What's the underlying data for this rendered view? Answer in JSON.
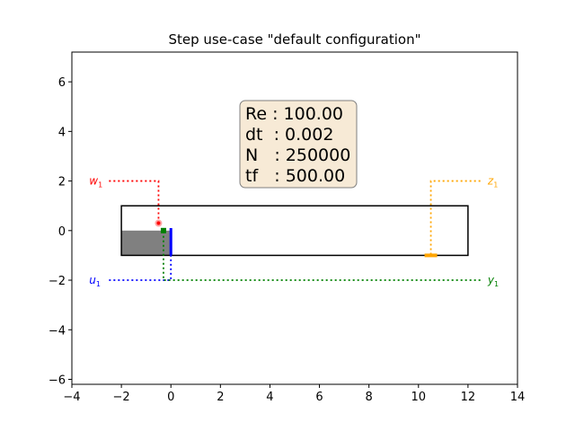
{
  "title": "Step use-case \"default configuration\"",
  "info_box": {
    "lines": [
      "Re : 100.00",
      "dt  : 0.002",
      "N   : 250000",
      "tf   : 500.00"
    ],
    "background": "#f7ead6",
    "border": "#7f7f7f"
  },
  "axes": {
    "xlim": [
      -4,
      14
    ],
    "ylim": [
      -6.2,
      7.2
    ],
    "xticks": [
      -4,
      -2,
      0,
      2,
      4,
      6,
      8,
      10,
      12,
      14
    ],
    "yticks": [
      -6,
      -4,
      -2,
      0,
      2,
      4,
      6
    ],
    "xtick_labels": [
      "−4",
      "−2",
      "0",
      "2",
      "4",
      "6",
      "8",
      "10",
      "12",
      "14"
    ],
    "ytick_labels": [
      "−6",
      "−4",
      "−2",
      "0",
      "2",
      "4",
      "6"
    ]
  },
  "domain": {
    "x": [
      -2,
      12
    ],
    "y": [
      -1,
      1
    ],
    "color": "#000000"
  },
  "step": {
    "x": [
      -2,
      0
    ],
    "y": [
      -1,
      0
    ],
    "color": "#808080"
  },
  "signals": [
    {
      "id": "w",
      "name": "w",
      "sub": "1",
      "color": "#ff0000",
      "label_at": [
        -3.3,
        2
      ],
      "path": [
        [
          -2.5,
          2
        ],
        [
          -0.5,
          2
        ],
        [
          -0.5,
          0.3
        ]
      ],
      "marker": "circle",
      "marker_at": [
        -0.5,
        0.3
      ]
    },
    {
      "id": "u",
      "name": "u",
      "sub": "1",
      "color": "#0000ff",
      "label_at": [
        -3.3,
        -2
      ],
      "path": [
        [
          -2.5,
          -2
        ],
        [
          0,
          -2
        ],
        [
          0,
          0.1
        ]
      ],
      "marker": "bar",
      "marker_at": [
        0,
        -0.5
      ]
    },
    {
      "id": "y",
      "name": "y",
      "sub": "1",
      "color": "#008000",
      "label_at": [
        12.8,
        -2
      ],
      "path": [
        [
          12.5,
          -2
        ],
        [
          -0.3,
          -2
        ],
        [
          -0.3,
          0
        ]
      ],
      "marker": "square",
      "marker_at": [
        -0.3,
        0
      ]
    },
    {
      "id": "z",
      "name": "z",
      "sub": "1",
      "color": "#ffa500",
      "label_at": [
        12.8,
        2
      ],
      "path": [
        [
          12.5,
          2
        ],
        [
          10.5,
          2
        ],
        [
          10.5,
          -1
        ]
      ],
      "marker": "hbar",
      "marker_at": [
        10.5,
        -1
      ]
    }
  ]
}
